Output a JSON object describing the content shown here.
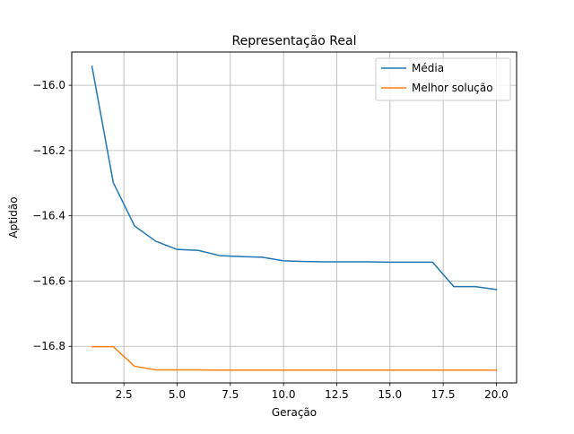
{
  "chart_data": {
    "type": "line",
    "title": "Representação Real",
    "xlabel": "Geração",
    "ylabel": "Aptidão",
    "xlim": [
      0.05,
      20.95
    ],
    "ylim": [
      -16.912,
      -15.898
    ],
    "xticks": [
      2.5,
      5.0,
      7.5,
      10.0,
      12.5,
      15.0,
      17.5,
      20.0
    ],
    "xtick_labels": [
      "2.5",
      "5.0",
      "7.5",
      "10.0",
      "12.5",
      "15.0",
      "17.5",
      "20.0"
    ],
    "yticks": [
      -16.0,
      -16.2,
      -16.4,
      -16.6,
      -16.8
    ],
    "ytick_labels": [
      "−16.0",
      "−16.2",
      "−16.4",
      "−16.6",
      "−16.8"
    ],
    "grid": true,
    "legend": "top-right",
    "x": [
      1,
      2,
      3,
      4,
      5,
      6,
      7,
      8,
      9,
      10,
      11,
      12,
      13,
      14,
      15,
      16,
      17,
      18,
      19,
      20
    ],
    "series": [
      {
        "name": "Média",
        "color": "#1f77b4",
        "values": [
          -15.942,
          -16.298,
          -16.431,
          -16.478,
          -16.503,
          -16.506,
          -16.522,
          -16.525,
          -16.527,
          -16.538,
          -16.54,
          -16.541,
          -16.541,
          -16.541,
          -16.542,
          -16.542,
          -16.542,
          -16.617,
          -16.617,
          -16.626
        ]
      },
      {
        "name": "Melhor solução",
        "color": "#ff7f0e",
        "values": [
          -16.801,
          -16.801,
          -16.861,
          -16.872,
          -16.872,
          -16.872,
          -16.873,
          -16.873,
          -16.873,
          -16.873,
          -16.873,
          -16.873,
          -16.873,
          -16.873,
          -16.873,
          -16.873,
          -16.873,
          -16.873,
          -16.873,
          -16.873
        ]
      }
    ]
  }
}
